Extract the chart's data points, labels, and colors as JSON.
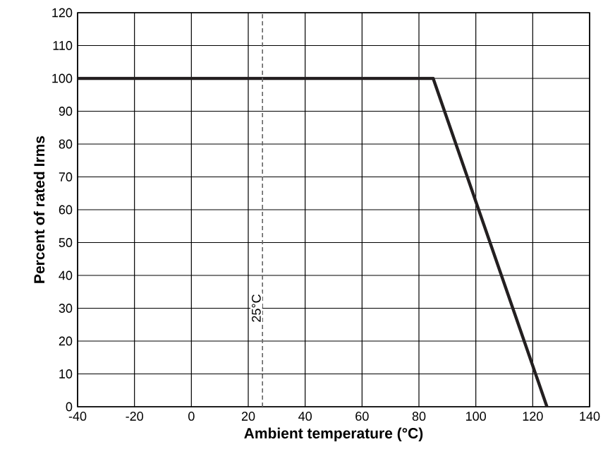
{
  "chart_data": {
    "type": "line",
    "xlabel": "Ambient temperature (°C)",
    "ylabel": "Percent of rated Irms",
    "x": [
      -40,
      85,
      125
    ],
    "series": [
      {
        "color": "#231f20",
        "values": [
          100,
          100,
          0
        ]
      }
    ],
    "xlim": [
      -40,
      140
    ],
    "xticks": [
      -40,
      -20,
      0,
      20,
      40,
      60,
      80,
      100,
      120,
      140
    ],
    "ylim": [
      0,
      120
    ],
    "yticks": [
      0,
      10,
      20,
      30,
      40,
      50,
      60,
      70,
      80,
      90,
      100,
      110,
      120
    ],
    "grid": true,
    "marker": "none",
    "line_style": "solid",
    "ref_lines": [
      {
        "axis": "x",
        "value": 25,
        "label": "25°C",
        "color": "#666666",
        "line_style": "dashed"
      }
    ]
  }
}
